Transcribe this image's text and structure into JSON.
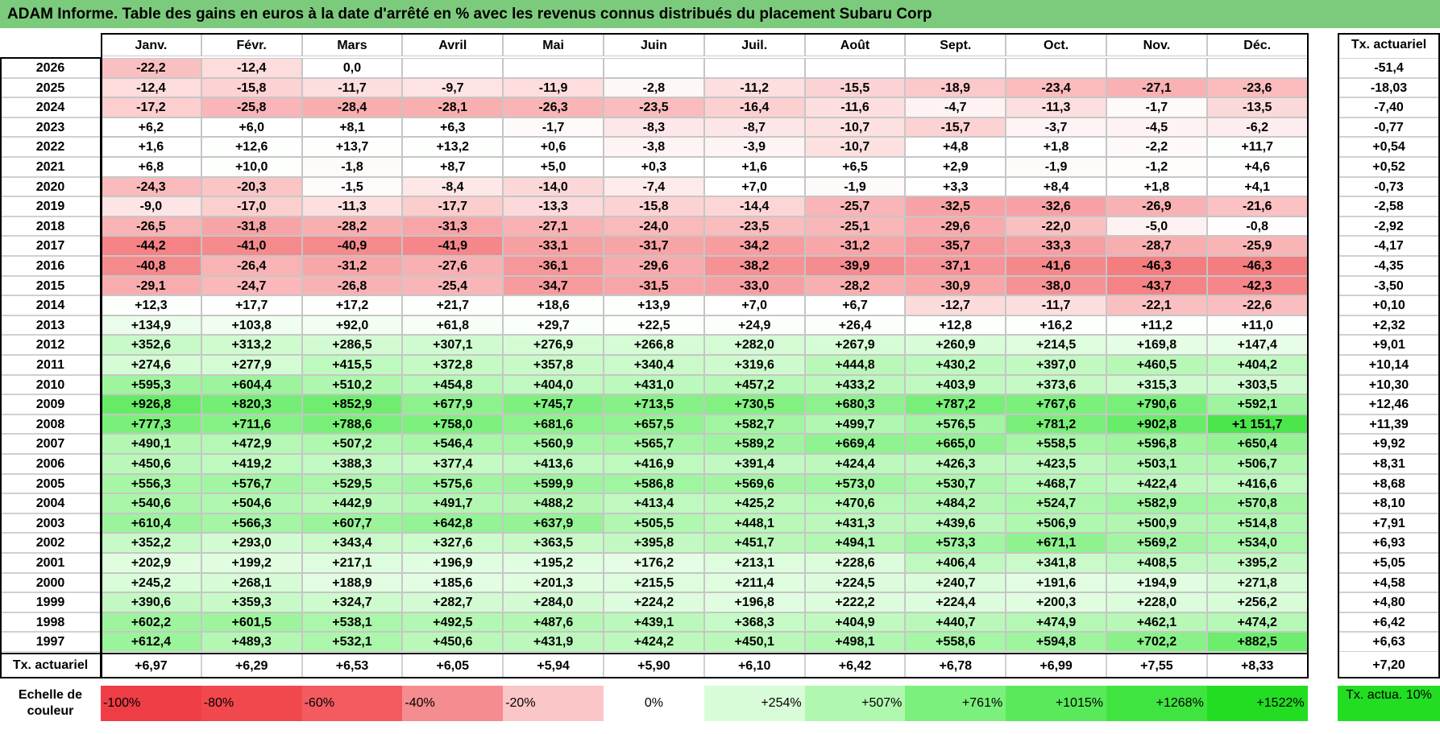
{
  "chart_data": {
    "type": "heatmap",
    "title": "ADAM Informe. Table des gains en euros à la date d'arrêté en % avec les revenus connus distribués du placement Subaru Corp",
    "columns": [
      "Janv.",
      "Févr.",
      "Mars",
      "Avril",
      "Mai",
      "Juin",
      "Juil.",
      "Août",
      "Sept.",
      "Oct.",
      "Nov.",
      "Déc."
    ],
    "summary_column_label": "Tx. actuariel",
    "summary_row_label": "Tx. actuariel",
    "rows": [
      {
        "year": "2026",
        "values": [
          "-22,2",
          "-12,4",
          "0,0",
          "",
          "",
          "",
          "",
          "",
          "",
          "",
          "",
          ""
        ],
        "tx": "-51,4"
      },
      {
        "year": "2025",
        "values": [
          "-12,4",
          "-15,8",
          "-11,7",
          "-9,7",
          "-11,9",
          "-2,8",
          "-11,2",
          "-15,5",
          "-18,9",
          "-23,4",
          "-27,1",
          "-23,6"
        ],
        "tx": "-18,03"
      },
      {
        "year": "2024",
        "values": [
          "-17,2",
          "-25,8",
          "-28,4",
          "-28,1",
          "-26,3",
          "-23,5",
          "-16,4",
          "-11,6",
          "-4,7",
          "-11,3",
          "-1,7",
          "-13,5"
        ],
        "tx": "-7,40"
      },
      {
        "year": "2023",
        "values": [
          "+6,2",
          "+6,0",
          "+8,1",
          "+6,3",
          "-1,7",
          "-8,3",
          "-8,7",
          "-10,7",
          "-15,7",
          "-3,7",
          "-4,5",
          "-6,2"
        ],
        "tx": "-0,77"
      },
      {
        "year": "2022",
        "values": [
          "+1,6",
          "+12,6",
          "+13,7",
          "+13,2",
          "+0,6",
          "-3,8",
          "-3,9",
          "-10,7",
          "+4,8",
          "+1,8",
          "-2,2",
          "+11,7"
        ],
        "tx": "+0,54"
      },
      {
        "year": "2021",
        "values": [
          "+6,8",
          "+10,0",
          "-1,8",
          "+8,7",
          "+5,0",
          "+0,3",
          "+1,6",
          "+6,5",
          "+2,9",
          "-1,9",
          "-1,2",
          "+4,6"
        ],
        "tx": "+0,52"
      },
      {
        "year": "2020",
        "values": [
          "-24,3",
          "-20,3",
          "-1,5",
          "-8,4",
          "-14,0",
          "-7,4",
          "+7,0",
          "-1,9",
          "+3,3",
          "+8,4",
          "+1,8",
          "+4,1"
        ],
        "tx": "-0,73"
      },
      {
        "year": "2019",
        "values": [
          "-9,0",
          "-17,0",
          "-11,3",
          "-17,7",
          "-13,3",
          "-15,8",
          "-14,4",
          "-25,7",
          "-32,5",
          "-32,6",
          "-26,9",
          "-21,6"
        ],
        "tx": "-2,58"
      },
      {
        "year": "2018",
        "values": [
          "-26,5",
          "-31,8",
          "-28,2",
          "-31,3",
          "-27,1",
          "-24,0",
          "-23,5",
          "-25,1",
          "-29,6",
          "-22,0",
          "-5,0",
          "-0,8"
        ],
        "tx": "-2,92"
      },
      {
        "year": "2017",
        "values": [
          "-44,2",
          "-41,0",
          "-40,9",
          "-41,9",
          "-33,1",
          "-31,7",
          "-34,2",
          "-31,2",
          "-35,7",
          "-33,3",
          "-28,7",
          "-25,9"
        ],
        "tx": "-4,17"
      },
      {
        "year": "2016",
        "values": [
          "-40,8",
          "-26,4",
          "-31,2",
          "-27,6",
          "-36,1",
          "-29,6",
          "-38,2",
          "-39,9",
          "-37,1",
          "-41,6",
          "-46,3",
          "-46,3"
        ],
        "tx": "-4,35"
      },
      {
        "year": "2015",
        "values": [
          "-29,1",
          "-24,7",
          "-26,8",
          "-25,4",
          "-34,7",
          "-31,5",
          "-33,0",
          "-28,2",
          "-30,9",
          "-38,0",
          "-43,7",
          "-42,3"
        ],
        "tx": "-3,50"
      },
      {
        "year": "2014",
        "values": [
          "+12,3",
          "+17,7",
          "+17,2",
          "+21,7",
          "+18,6",
          "+13,9",
          "+7,0",
          "+6,7",
          "-12,7",
          "-11,7",
          "-22,1",
          "-22,6"
        ],
        "tx": "+0,10"
      },
      {
        "year": "2013",
        "values": [
          "+134,9",
          "+103,8",
          "+92,0",
          "+61,8",
          "+29,7",
          "+22,5",
          "+24,9",
          "+26,4",
          "+12,8",
          "+16,2",
          "+11,2",
          "+11,0"
        ],
        "tx": "+2,32"
      },
      {
        "year": "2012",
        "values": [
          "+352,6",
          "+313,2",
          "+286,5",
          "+307,1",
          "+276,9",
          "+266,8",
          "+282,0",
          "+267,9",
          "+260,9",
          "+214,5",
          "+169,8",
          "+147,4"
        ],
        "tx": "+9,01"
      },
      {
        "year": "2011",
        "values": [
          "+274,6",
          "+277,9",
          "+415,5",
          "+372,8",
          "+357,8",
          "+340,4",
          "+319,6",
          "+444,8",
          "+430,2",
          "+397,0",
          "+460,5",
          "+404,2"
        ],
        "tx": "+10,14"
      },
      {
        "year": "2010",
        "values": [
          "+595,3",
          "+604,4",
          "+510,2",
          "+454,8",
          "+404,0",
          "+431,0",
          "+457,2",
          "+433,2",
          "+403,9",
          "+373,6",
          "+315,3",
          "+303,5"
        ],
        "tx": "+10,30"
      },
      {
        "year": "2009",
        "values": [
          "+926,8",
          "+820,3",
          "+852,9",
          "+677,9",
          "+745,7",
          "+713,5",
          "+730,5",
          "+680,3",
          "+787,2",
          "+767,6",
          "+790,6",
          "+592,1"
        ],
        "tx": "+12,46"
      },
      {
        "year": "2008",
        "values": [
          "+777,3",
          "+711,6",
          "+788,6",
          "+758,0",
          "+681,6",
          "+657,5",
          "+582,7",
          "+499,7",
          "+576,5",
          "+781,2",
          "+902,8",
          "+1 151,7"
        ],
        "tx": "+11,39"
      },
      {
        "year": "2007",
        "values": [
          "+490,1",
          "+472,9",
          "+507,2",
          "+546,4",
          "+560,9",
          "+565,7",
          "+589,2",
          "+669,4",
          "+665,0",
          "+558,5",
          "+596,8",
          "+650,4"
        ],
        "tx": "+9,92"
      },
      {
        "year": "2006",
        "values": [
          "+450,6",
          "+419,2",
          "+388,3",
          "+377,4",
          "+413,6",
          "+416,9",
          "+391,4",
          "+424,4",
          "+426,3",
          "+423,5",
          "+503,1",
          "+506,7"
        ],
        "tx": "+8,31"
      },
      {
        "year": "2005",
        "values": [
          "+556,3",
          "+576,7",
          "+529,5",
          "+575,6",
          "+599,9",
          "+586,8",
          "+569,6",
          "+573,0",
          "+530,7",
          "+468,7",
          "+422,4",
          "+416,6"
        ],
        "tx": "+8,68"
      },
      {
        "year": "2004",
        "values": [
          "+540,6",
          "+504,6",
          "+442,9",
          "+491,7",
          "+488,2",
          "+413,4",
          "+425,2",
          "+470,6",
          "+484,2",
          "+524,7",
          "+582,9",
          "+570,8"
        ],
        "tx": "+8,10"
      },
      {
        "year": "2003",
        "values": [
          "+610,4",
          "+566,3",
          "+607,7",
          "+642,8",
          "+637,9",
          "+505,5",
          "+448,1",
          "+431,3",
          "+439,6",
          "+506,9",
          "+500,9",
          "+514,8"
        ],
        "tx": "+7,91"
      },
      {
        "year": "2002",
        "values": [
          "+352,2",
          "+293,0",
          "+343,4",
          "+327,6",
          "+363,5",
          "+395,8",
          "+451,7",
          "+494,1",
          "+573,3",
          "+671,1",
          "+569,2",
          "+534,0"
        ],
        "tx": "+6,93"
      },
      {
        "year": "2001",
        "values": [
          "+202,9",
          "+199,2",
          "+217,1",
          "+196,9",
          "+195,2",
          "+176,2",
          "+213,1",
          "+228,6",
          "+406,4",
          "+341,8",
          "+408,5",
          "+395,2"
        ],
        "tx": "+5,05"
      },
      {
        "year": "2000",
        "values": [
          "+245,2",
          "+268,1",
          "+188,9",
          "+185,6",
          "+201,3",
          "+215,5",
          "+211,4",
          "+224,5",
          "+240,7",
          "+191,6",
          "+194,9",
          "+271,8"
        ],
        "tx": "+4,58"
      },
      {
        "year": "1999",
        "values": [
          "+390,6",
          "+359,3",
          "+324,7",
          "+282,7",
          "+284,0",
          "+224,2",
          "+196,8",
          "+222,2",
          "+224,4",
          "+200,3",
          "+228,0",
          "+256,2"
        ],
        "tx": "+4,80"
      },
      {
        "year": "1998",
        "values": [
          "+602,2",
          "+601,5",
          "+538,1",
          "+492,5",
          "+487,6",
          "+439,1",
          "+368,3",
          "+404,9",
          "+440,7",
          "+474,9",
          "+462,1",
          "+474,2"
        ],
        "tx": "+6,42"
      },
      {
        "year": "1997",
        "values": [
          "+612,4",
          "+489,3",
          "+532,1",
          "+450,6",
          "+431,9",
          "+424,2",
          "+450,1",
          "+498,1",
          "+558,6",
          "+594,8",
          "+702,2",
          "+882,5"
        ],
        "tx": "+6,63"
      }
    ],
    "summary_row": [
      "+6,97",
      "+6,29",
      "+6,53",
      "+6,05",
      "+5,94",
      "+5,90",
      "+6,10",
      "+6,42",
      "+6,78",
      "+6,99",
      "+7,55",
      "+8,33"
    ],
    "summary_total": "+7,20",
    "scale": {
      "label": "Echelle de couleur",
      "stops": [
        {
          "label": "-100%",
          "value": -100,
          "color": "#ef3d45"
        },
        {
          "label": "-80%",
          "value": -80,
          "color": "#f1484e"
        },
        {
          "label": "-60%",
          "value": -60,
          "color": "#f35b60"
        },
        {
          "label": "-40%",
          "value": -40,
          "color": "#f58c8f"
        },
        {
          "label": "-20%",
          "value": -20,
          "color": "#fbc6c7"
        },
        {
          "label": "0%",
          "value": 0,
          "color": "#ffffff"
        },
        {
          "label": "+254%",
          "value": 254,
          "color": "#d8fcd8"
        },
        {
          "label": "+507%",
          "value": 507,
          "color": "#b0f7b0"
        },
        {
          "label": "+761%",
          "value": 761,
          "color": "#7cf07c"
        },
        {
          "label": "+1015%",
          "value": 1015,
          "color": "#5ae95a"
        },
        {
          "label": "+1268%",
          "value": 1268,
          "color": "#40e440"
        },
        {
          "label": "+1522%",
          "value": 1522,
          "color": "#22dd22"
        }
      ],
      "tx_label": "Tx. actua. 10%",
      "tx_color": "#22dd22"
    }
  }
}
